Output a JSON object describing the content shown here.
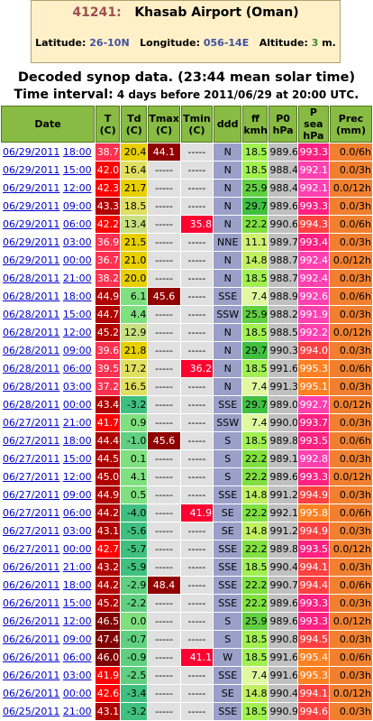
{
  "station": {
    "id": "41241:",
    "name": "Khasab Airport (Oman)",
    "latitude_label": "Latitude:",
    "latitude": "26-10N",
    "longitude_label": "Longitude:",
    "longitude": "056-14E",
    "altitude_label": "Altitude:",
    "altitude": "3",
    "altitude_unit": "m."
  },
  "header": {
    "line1": "Decoded synop data. (23:44 mean solar time)",
    "line2_prefix": "Time interval:",
    "line2_mid": " 4 days before ",
    "line2_date": "2011/06/29 at 20:00 UTC",
    "line2_suffix": "."
  },
  "columns": [
    {
      "key": "date",
      "label": "Date"
    },
    {
      "key": "t",
      "label": "T\n(C)"
    },
    {
      "key": "td",
      "label": "Td\n(C)"
    },
    {
      "key": "tmax",
      "label": "Tmax\n(C)"
    },
    {
      "key": "tmin",
      "label": "Tmin\n(C)"
    },
    {
      "key": "ddd",
      "label": "ddd"
    },
    {
      "key": "ff",
      "label": "ff\nkmh"
    },
    {
      "key": "p0",
      "label": "P0\nhPa"
    },
    {
      "key": "psea",
      "label": "P sea\nhPa"
    },
    {
      "key": "prec",
      "label": "Prec\n(mm)"
    }
  ],
  "rows": [
    {
      "date": "06/29/2011",
      "time": "18:00",
      "t": "38.7",
      "td": "20.4",
      "tmax": "44.1",
      "tmin": "-----",
      "ddd": "N",
      "ff": "18.5",
      "p0": "989.6",
      "psea": "993.3",
      "prec": "0.0/6h"
    },
    {
      "date": "06/29/2011",
      "time": "15:00",
      "t": "42.0",
      "td": "16.4",
      "tmax": "-----",
      "tmin": "-----",
      "ddd": "N",
      "ff": "18.5",
      "p0": "988.4",
      "psea": "992.1",
      "prec": "0.0/3h"
    },
    {
      "date": "06/29/2011",
      "time": "12:00",
      "t": "42.3",
      "td": "21.7",
      "tmax": "-----",
      "tmin": "-----",
      "ddd": "N",
      "ff": "25.9",
      "p0": "988.4",
      "psea": "992.1",
      "prec": "0.0/12h"
    },
    {
      "date": "06/29/2011",
      "time": "09:00",
      "t": "43.3",
      "td": "18.5",
      "tmax": "-----",
      "tmin": "-----",
      "ddd": "N",
      "ff": "29.7",
      "p0": "989.6",
      "psea": "993.3",
      "prec": "0.0/3h"
    },
    {
      "date": "06/29/2011",
      "time": "06:00",
      "t": "42.2",
      "td": "13.4",
      "tmax": "-----",
      "tmin": "35.8",
      "ddd": "N",
      "ff": "22.2",
      "p0": "990.6",
      "psea": "994.3",
      "prec": "0.0/6h"
    },
    {
      "date": "06/29/2011",
      "time": "03:00",
      "t": "36.9",
      "td": "21.5",
      "tmax": "-----",
      "tmin": "-----",
      "ddd": "NNE",
      "ff": "11.1",
      "p0": "989.7",
      "psea": "993.4",
      "prec": "0.0/3h"
    },
    {
      "date": "06/29/2011",
      "time": "00:00",
      "t": "36.7",
      "td": "21.0",
      "tmax": "-----",
      "tmin": "-----",
      "ddd": "N",
      "ff": "14.8",
      "p0": "988.7",
      "psea": "992.4",
      "prec": "0.0/12h"
    },
    {
      "date": "06/28/2011",
      "time": "21:00",
      "t": "38.2",
      "td": "20.0",
      "tmax": "-----",
      "tmin": "-----",
      "ddd": "N",
      "ff": "18.5",
      "p0": "988.7",
      "psea": "992.4",
      "prec": "0.0/3h"
    },
    {
      "date": "06/28/2011",
      "time": "18:00",
      "t": "44.9",
      "td": "6.1",
      "tmax": "45.6",
      "tmin": "-----",
      "ddd": "SSE",
      "ff": "7.4",
      "p0": "988.9",
      "psea": "992.6",
      "prec": "0.0/6h"
    },
    {
      "date": "06/28/2011",
      "time": "15:00",
      "t": "44.7",
      "td": "4.4",
      "tmax": "-----",
      "tmin": "-----",
      "ddd": "SSW",
      "ff": "25.9",
      "p0": "988.2",
      "psea": "991.9",
      "prec": "0.0/3h"
    },
    {
      "date": "06/28/2011",
      "time": "12:00",
      "t": "45.2",
      "td": "12.9",
      "tmax": "-----",
      "tmin": "-----",
      "ddd": "N",
      "ff": "18.5",
      "p0": "988.5",
      "psea": "992.2",
      "prec": "0.0/12h"
    },
    {
      "date": "06/28/2011",
      "time": "09:00",
      "t": "39.6",
      "td": "21.8",
      "tmax": "-----",
      "tmin": "-----",
      "ddd": "N",
      "ff": "29.7",
      "p0": "990.3",
      "psea": "994.0",
      "prec": "0.0/3h"
    },
    {
      "date": "06/28/2011",
      "time": "06:00",
      "t": "39.5",
      "td": "17.2",
      "tmax": "-----",
      "tmin": "36.2",
      "ddd": "N",
      "ff": "18.5",
      "p0": "991.6",
      "psea": "995.3",
      "prec": "0.0/6h"
    },
    {
      "date": "06/28/2011",
      "time": "03:00",
      "t": "37.2",
      "td": "16.5",
      "tmax": "-----",
      "tmin": "-----",
      "ddd": "N",
      "ff": "7.4",
      "p0": "991.3",
      "psea": "995.1",
      "prec": "0.0/3h"
    },
    {
      "date": "06/28/2011",
      "time": "00:00",
      "t": "43.4",
      "td": "-3.2",
      "tmax": "-----",
      "tmin": "-----",
      "ddd": "SSE",
      "ff": "29.7",
      "p0": "989.0",
      "psea": "992.7",
      "prec": "0.0/12h"
    },
    {
      "date": "06/27/2011",
      "time": "21:00",
      "t": "41.7",
      "td": "0.9",
      "tmax": "-----",
      "tmin": "-----",
      "ddd": "SSW",
      "ff": "7.4",
      "p0": "990.0",
      "psea": "993.7",
      "prec": "0.0/3h"
    },
    {
      "date": "06/27/2011",
      "time": "18:00",
      "t": "44.4",
      "td": "-1.0",
      "tmax": "45.6",
      "tmin": "-----",
      "ddd": "S",
      "ff": "18.5",
      "p0": "989.8",
      "psea": "993.5",
      "prec": "0.0/6h"
    },
    {
      "date": "06/27/2011",
      "time": "15:00",
      "t": "44.5",
      "td": "0.1",
      "tmax": "-----",
      "tmin": "-----",
      "ddd": "S",
      "ff": "22.2",
      "p0": "989.1",
      "psea": "992.8",
      "prec": "0.0/3h"
    },
    {
      "date": "06/27/2011",
      "time": "12:00",
      "t": "45.0",
      "td": "4.1",
      "tmax": "-----",
      "tmin": "-----",
      "ddd": "S",
      "ff": "22.2",
      "p0": "989.6",
      "psea": "993.3",
      "prec": "0.0/12h"
    },
    {
      "date": "06/27/2011",
      "time": "09:00",
      "t": "44.9",
      "td": "0.5",
      "tmax": "-----",
      "tmin": "-----",
      "ddd": "SSE",
      "ff": "14.8",
      "p0": "991.2",
      "psea": "994.9",
      "prec": "0.0/3h"
    },
    {
      "date": "06/27/2011",
      "time": "06:00",
      "t": "44.2",
      "td": "-4.0",
      "tmax": "-----",
      "tmin": "41.9",
      "ddd": "SE",
      "ff": "22.2",
      "p0": "992.1",
      "psea": "995.8",
      "prec": "0.0/6h"
    },
    {
      "date": "06/27/2011",
      "time": "03:00",
      "t": "43.1",
      "td": "-5.6",
      "tmax": "-----",
      "tmin": "-----",
      "ddd": "SE",
      "ff": "14.8",
      "p0": "991.2",
      "psea": "994.9",
      "prec": "0.0/3h"
    },
    {
      "date": "06/27/2011",
      "time": "00:00",
      "t": "42.7",
      "td": "-5.7",
      "tmax": "-----",
      "tmin": "-----",
      "ddd": "SSE",
      "ff": "22.2",
      "p0": "989.8",
      "psea": "993.5",
      "prec": "0.0/12h"
    },
    {
      "date": "06/26/2011",
      "time": "21:00",
      "t": "43.2",
      "td": "-5.9",
      "tmax": "-----",
      "tmin": "-----",
      "ddd": "SSE",
      "ff": "18.5",
      "p0": "990.4",
      "psea": "994.1",
      "prec": "0.0/3h"
    },
    {
      "date": "06/26/2011",
      "time": "18:00",
      "t": "44.2",
      "td": "-2.9",
      "tmax": "48.4",
      "tmin": "-----",
      "ddd": "SSE",
      "ff": "22.2",
      "p0": "990.7",
      "psea": "994.4",
      "prec": "0.0/6h"
    },
    {
      "date": "06/26/2011",
      "time": "15:00",
      "t": "45.2",
      "td": "-2.2",
      "tmax": "-----",
      "tmin": "-----",
      "ddd": "SSE",
      "ff": "22.2",
      "p0": "989.6",
      "psea": "993.3",
      "prec": "0.0/3h"
    },
    {
      "date": "06/26/2011",
      "time": "12:00",
      "t": "46.5",
      "td": "0.0",
      "tmax": "-----",
      "tmin": "-----",
      "ddd": "S",
      "ff": "25.9",
      "p0": "989.6",
      "psea": "993.3",
      "prec": "0.0/12h"
    },
    {
      "date": "06/26/2011",
      "time": "09:00",
      "t": "47.4",
      "td": "-0.7",
      "tmax": "-----",
      "tmin": "-----",
      "ddd": "S",
      "ff": "18.5",
      "p0": "990.8",
      "psea": "994.5",
      "prec": "0.0/3h"
    },
    {
      "date": "06/26/2011",
      "time": "06:00",
      "t": "46.0",
      "td": "-0.9",
      "tmax": "-----",
      "tmin": "41.1",
      "ddd": "W",
      "ff": "18.5",
      "p0": "991.6",
      "psea": "995.4",
      "prec": "0.0/6h"
    },
    {
      "date": "06/26/2011",
      "time": "03:00",
      "t": "41.9",
      "td": "-2.5",
      "tmax": "-----",
      "tmin": "-----",
      "ddd": "SSE",
      "ff": "7.4",
      "p0": "991.6",
      "psea": "995.3",
      "prec": "0.0/3h"
    },
    {
      "date": "06/26/2011",
      "time": "00:00",
      "t": "42.6",
      "td": "-3.4",
      "tmax": "-----",
      "tmin": "-----",
      "ddd": "SE",
      "ff": "14.8",
      "p0": "990.4",
      "psea": "994.1",
      "prec": "0.0/12h"
    },
    {
      "date": "06/25/2011",
      "time": "21:00",
      "t": "43.1",
      "td": "-3.2",
      "tmax": "-----",
      "tmin": "-----",
      "ddd": "SSE",
      "ff": "18.5",
      "p0": "990.9",
      "psea": "994.6",
      "prec": "0.0/3h"
    }
  ],
  "colors": {
    "header_bg": "#88bb44",
    "p0_bg": "#c0c0c0",
    "ddd_bg": "#9aa0c8",
    "prec_bg": "#f08030",
    "empty_bg": "#e0e0e0"
  }
}
